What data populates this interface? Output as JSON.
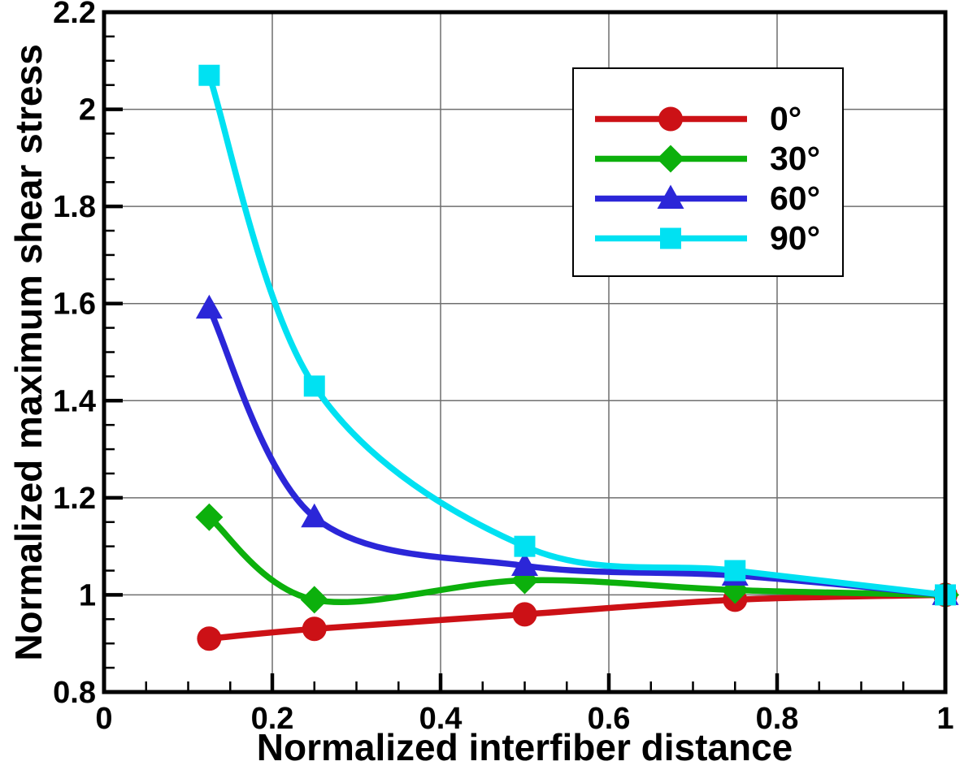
{
  "chart_data": {
    "type": "line",
    "title": "",
    "xlabel": "Normalized interfiber distance",
    "ylabel": "Normalized maximum shear stress",
    "xlim": [
      0,
      1
    ],
    "ylim": [
      0.8,
      2.2
    ],
    "x_tick_values": [
      0,
      0.2,
      0.4,
      0.6,
      0.8,
      1
    ],
    "x_tick_labels": [
      "0",
      "0.2",
      "0.4",
      "0.6",
      "0.8",
      "1"
    ],
    "y_tick_values": [
      0.8,
      1.0,
      1.2,
      1.4,
      1.6,
      1.8,
      2.0,
      2.2
    ],
    "y_tick_labels": [
      "0.8",
      "1",
      "1.2",
      "1.4",
      "1.6",
      "1.8",
      "2",
      "2.2"
    ],
    "minor_tick_step": 0.05,
    "grid": "major",
    "grid_color": "#6f6f6f",
    "axis_color": "#000000",
    "legend_position": "upper-right-inside",
    "x": [
      0.125,
      0.25,
      0.5,
      0.75,
      1.0
    ],
    "series": [
      {
        "name": "0°",
        "marker": "circle",
        "color": "#cc1116",
        "values": [
          0.91,
          0.93,
          0.96,
          0.99,
          1.0
        ]
      },
      {
        "name": "30°",
        "marker": "diamond",
        "color": "#0cb00c",
        "values": [
          1.16,
          0.99,
          1.03,
          1.01,
          1.0
        ]
      },
      {
        "name": "60°",
        "marker": "triangle",
        "color": "#2b26d8",
        "values": [
          1.59,
          1.16,
          1.06,
          1.04,
          1.0
        ]
      },
      {
        "name": "90°",
        "marker": "square",
        "color": "#00e1f2",
        "values": [
          2.07,
          1.43,
          1.1,
          1.05,
          1.0
        ]
      }
    ]
  }
}
